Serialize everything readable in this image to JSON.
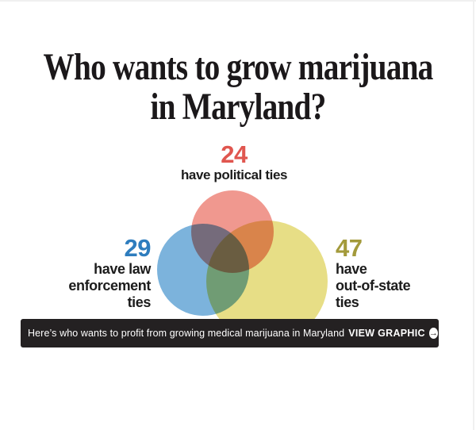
{
  "title": {
    "line1": "Who wants to grow marijuana",
    "line2": "in Maryland?"
  },
  "political": {
    "value": "24",
    "label": "have political ties",
    "value_color": "#e0564f",
    "circle_color": "#f0988f"
  },
  "law_enforcement": {
    "value": "29",
    "label_line1": "have law",
    "label_line2": "enforcement",
    "label_line3": "ties",
    "value_color": "#2e7dbe",
    "circle_color": "#7cb3dc"
  },
  "out_of_state": {
    "value": "47",
    "label_line1": "have",
    "label_line2": "out-of-state",
    "label_line3": "ties",
    "value_color": "#a39a3b",
    "circle_color": "#e7de86"
  },
  "banner": {
    "text": "Here’s who wants to profit from growing medical marijuana in Maryland",
    "cta": "VIEW GRAPHIC",
    "arrow_glyph": "→",
    "background": "#242122",
    "text_color": "#ffffff"
  },
  "chart_data": {
    "type": "venn",
    "title": "Who wants to grow marijuana in Maryland?",
    "sets": [
      {
        "label": "have political ties",
        "value": 24,
        "color": "#f0988f"
      },
      {
        "label": "have law enforcement ties",
        "value": 29,
        "color": "#7cb3dc"
      },
      {
        "label": "have out-of-state ties",
        "value": 47,
        "color": "#e7de86"
      }
    ],
    "layout": "three-circle area-proportional venn, overlap regions unlabeled, multiply-style color blending"
  }
}
